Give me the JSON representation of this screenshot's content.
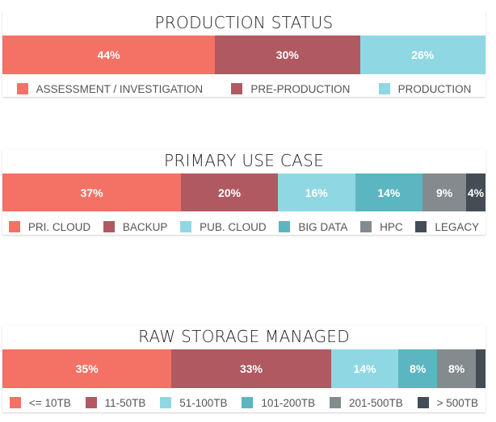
{
  "chart_data": [
    {
      "type": "bar",
      "stacked": true,
      "orientation": "horizontal",
      "title": "PRODUCTION STATUS",
      "series": [
        {
          "name": "ASSESSMENT / INVESTIGATION",
          "value": 44,
          "label": "44%",
          "color": "#f47265"
        },
        {
          "name": "PRE-PRODUCTION",
          "value": 30,
          "label": "30%",
          "color": "#b05961"
        },
        {
          "name": "PRODUCTION",
          "value": 26,
          "label": "26%",
          "color": "#8fd8e3"
        }
      ],
      "legend": "bottom"
    },
    {
      "type": "bar",
      "stacked": true,
      "orientation": "horizontal",
      "title": "PRIMARY USE CASE",
      "series": [
        {
          "name": "PRI. CLOUD",
          "value": 37,
          "label": "37%",
          "color": "#f47265"
        },
        {
          "name": "BACKUP",
          "value": 20,
          "label": "20%",
          "color": "#b05961"
        },
        {
          "name": "PUB. CLOUD",
          "value": 16,
          "label": "16%",
          "color": "#8fd8e3"
        },
        {
          "name": "BIG DATA",
          "value": 14,
          "label": "14%",
          "color": "#5bb6c1"
        },
        {
          "name": "HPC",
          "value": 9,
          "label": "9%",
          "color": "#838b8f"
        },
        {
          "name": "LEGACY",
          "value": 4,
          "label": "4%",
          "color": "#444d55"
        }
      ],
      "legend": "bottom"
    },
    {
      "type": "bar",
      "stacked": true,
      "orientation": "horizontal",
      "title": "RAW STORAGE MANAGED",
      "series": [
        {
          "name": "<= 10TB",
          "value": 35,
          "label": "35%",
          "color": "#f47265"
        },
        {
          "name": "11-50TB",
          "value": 33,
          "label": "33%",
          "color": "#b05961"
        },
        {
          "name": "51-100TB",
          "value": 14,
          "label": "14%",
          "color": "#8fd8e3"
        },
        {
          "name": "101-200TB",
          "value": 8,
          "label": "8%",
          "color": "#5bb6c1"
        },
        {
          "name": "201-500TB",
          "value": 8,
          "label": "8%",
          "color": "#838b8f"
        },
        {
          "name": "> 500TB",
          "value": 2,
          "label": "",
          "color": "#444d55"
        }
      ],
      "legend": "bottom"
    }
  ]
}
